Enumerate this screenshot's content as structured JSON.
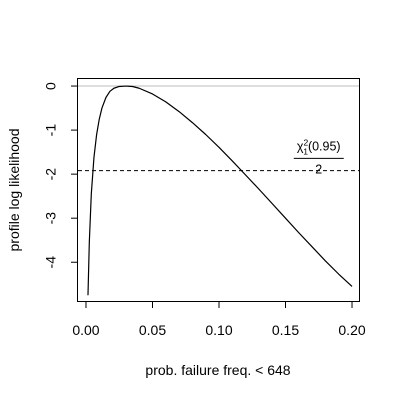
{
  "chart_data": {
    "type": "line",
    "title": "",
    "xlabel": "prob. failure freq. < 648",
    "ylabel": "profile log likelihood",
    "xlim": [
      -0.006,
      0.206
    ],
    "ylim": [
      -4.88,
      0.16
    ],
    "x_ticks": [
      0.0,
      0.05,
      0.1,
      0.15,
      0.2
    ],
    "x_tick_labels": [
      "0.00",
      "0.05",
      "0.10",
      "0.15",
      "0.20"
    ],
    "y_ticks": [
      0,
      -1,
      -2,
      -3,
      -4
    ],
    "y_tick_labels": [
      "0",
      "-1",
      "-2",
      "-3",
      "-4"
    ],
    "grid": false,
    "legend": "none",
    "series": [
      {
        "x": [
          0.0015,
          0.0025,
          0.004,
          0.006,
          0.008,
          0.01,
          0.012,
          0.015,
          0.018,
          0.021,
          0.025,
          0.03,
          0.035,
          0.04,
          0.05,
          0.06,
          0.07,
          0.08,
          0.09,
          0.1,
          0.11,
          0.12,
          0.13,
          0.14,
          0.15,
          0.16,
          0.17,
          0.18,
          0.19,
          0.2
        ],
        "y": [
          -4.75,
          -3.55,
          -2.45,
          -1.62,
          -1.1,
          -0.75,
          -0.5,
          -0.26,
          -0.12,
          -0.05,
          -0.01,
          0.0,
          -0.01,
          -0.05,
          -0.18,
          -0.36,
          -0.58,
          -0.83,
          -1.1,
          -1.39,
          -1.7,
          -2.02,
          -2.34,
          -2.67,
          -3.0,
          -3.33,
          -3.65,
          -3.97,
          -4.27,
          -4.55
        ],
        "color": "#000000"
      }
    ],
    "reference_lines": [
      {
        "type": "horizontal",
        "y": 0,
        "color": "#bebebe",
        "style": "solid"
      },
      {
        "type": "horizontal",
        "y": -1.92,
        "color": "#000000",
        "style": "dashed"
      }
    ],
    "annotation": {
      "x": 0.175,
      "y": -1.55,
      "numerator": {
        "chi": "χ",
        "sub": "1",
        "sup": "2",
        "arg": "(0.95)"
      },
      "denominator": "2"
    }
  }
}
